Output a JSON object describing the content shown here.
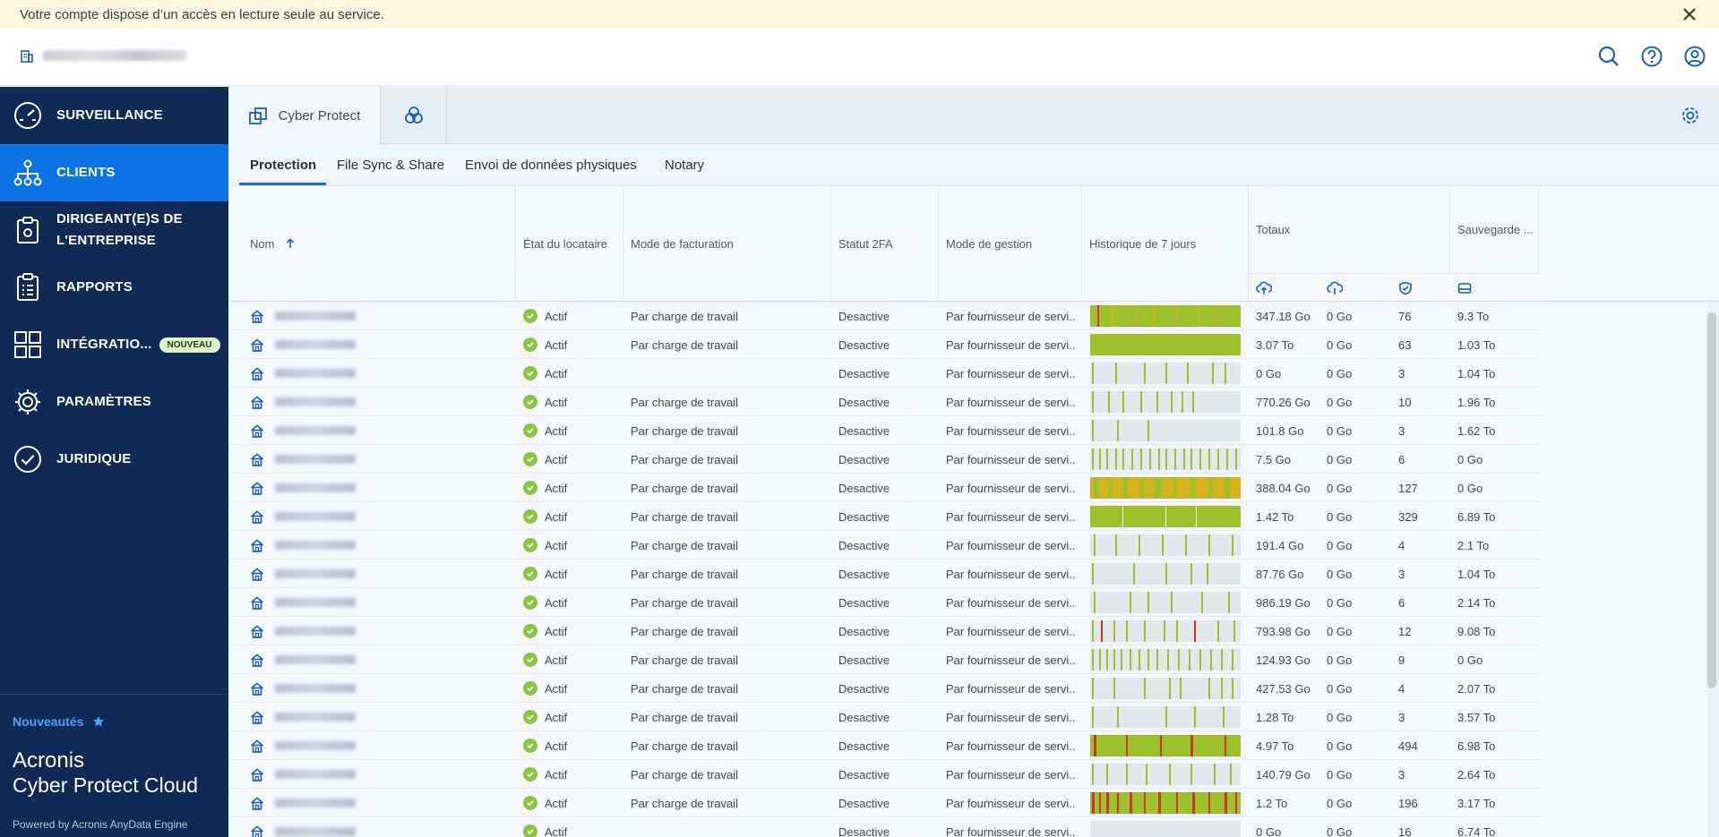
{
  "banner": {
    "message": "Votre compte dispose d’un accès en lecture seule au service."
  },
  "sidebar": {
    "items": [
      {
        "label": "SURVEILLANCE",
        "icon": "gauge-icon"
      },
      {
        "label": "CLIENTS",
        "icon": "org-chart-icon",
        "active": true
      },
      {
        "label": "DIRIGEANT(E)S DE",
        "label2": "L'ENTREPRISE",
        "icon": "clipboard-gear-icon"
      },
      {
        "label": "RAPPORTS",
        "icon": "report-icon"
      },
      {
        "label": "INTÉGRATIO...",
        "icon": "integrations-icon",
        "badge": "NOUVEAU"
      },
      {
        "label": "PARAMÈTRES",
        "icon": "gear-icon"
      },
      {
        "label": "JURIDIQUE",
        "icon": "check-circle-icon"
      }
    ],
    "whats_new": "Nouveautés",
    "brand_line1": "Acronis",
    "brand_line2": "Cyber Protect Cloud",
    "powered": "Powered by Acronis AnyData Engine"
  },
  "app_tabs": [
    {
      "label": "Cyber Protect"
    }
  ],
  "sub_tabs": [
    "Protection",
    "File Sync & Share",
    "Envoi de données physiques",
    "Notary"
  ],
  "table": {
    "headers": {
      "name": "Nom",
      "tenant_state": "État du locataire",
      "billing_mode": "Mode de facturation",
      "status_2fa": "Statut 2FA",
      "mgmt_mode": "Mode de gestion",
      "history": "Historique de 7 jours",
      "totals": "Totaux",
      "backup": "Sauvegarde ..."
    },
    "rows": [
      {
        "state": "Actif",
        "billing": "Par charge de travail",
        "twofa": "Desactive",
        "mgmt": "Par fournisseur de servi...",
        "t1": "347.18 Go",
        "t2": "0 Go",
        "t3": "76",
        "backup": "9.3 To"
      },
      {
        "state": "Actif",
        "billing": "Par charge de travail",
        "twofa": "Desactive",
        "mgmt": "Par fournisseur de servi...",
        "t1": "3.07 To",
        "t2": "0 Go",
        "t3": "63",
        "backup": "1.03 To"
      },
      {
        "state": "Actif",
        "billing": "",
        "twofa": "Desactive",
        "mgmt": "Par fournisseur de servi...",
        "t1": "0 Go",
        "t2": "0 Go",
        "t3": "3",
        "backup": "1.04 To"
      },
      {
        "state": "Actif",
        "billing": "Par charge de travail",
        "twofa": "Desactive",
        "mgmt": "Par fournisseur de servi...",
        "t1": "770.26 Go",
        "t2": "0 Go",
        "t3": "10",
        "backup": "1.96 To"
      },
      {
        "state": "Actif",
        "billing": "Par charge de travail",
        "twofa": "Desactive",
        "mgmt": "Par fournisseur de servi...",
        "t1": "101.8 Go",
        "t2": "0 Go",
        "t3": "3",
        "backup": "1.62 To"
      },
      {
        "state": "Actif",
        "billing": "Par charge de travail",
        "twofa": "Desactive",
        "mgmt": "Par fournisseur de servi...",
        "t1": "7.5 Go",
        "t2": "0 Go",
        "t3": "6",
        "backup": "0 Go"
      },
      {
        "state": "Actif",
        "billing": "Par charge de travail",
        "twofa": "Desactive",
        "mgmt": "Par fournisseur de servi...",
        "t1": "388.04 Go",
        "t2": "0 Go",
        "t3": "127",
        "backup": "0 Go"
      },
      {
        "state": "Actif",
        "billing": "Par charge de travail",
        "twofa": "Desactive",
        "mgmt": "Par fournisseur de servi...",
        "t1": "1.42 To",
        "t2": "0 Go",
        "t3": "329",
        "backup": "6.89 To"
      },
      {
        "state": "Actif",
        "billing": "Par charge de travail",
        "twofa": "Desactive",
        "mgmt": "Par fournisseur de servi...",
        "t1": "191.4 Go",
        "t2": "0 Go",
        "t3": "4",
        "backup": "2.1 To"
      },
      {
        "state": "Actif",
        "billing": "Par charge de travail",
        "twofa": "Desactive",
        "mgmt": "Par fournisseur de servi...",
        "t1": "87.76 Go",
        "t2": "0 Go",
        "t3": "3",
        "backup": "1.04 To"
      },
      {
        "state": "Actif",
        "billing": "Par charge de travail",
        "twofa": "Desactive",
        "mgmt": "Par fournisseur de servi...",
        "t1": "986.19 Go",
        "t2": "0 Go",
        "t3": "6",
        "backup": "2.14 To"
      },
      {
        "state": "Actif",
        "billing": "Par charge de travail",
        "twofa": "Desactive",
        "mgmt": "Par fournisseur de servi...",
        "t1": "793.98 Go",
        "t2": "0 Go",
        "t3": "12",
        "backup": "9.08 To"
      },
      {
        "state": "Actif",
        "billing": "Par charge de travail",
        "twofa": "Desactive",
        "mgmt": "Par fournisseur de servi...",
        "t1": "124.93 Go",
        "t2": "0 Go",
        "t3": "9",
        "backup": "0 Go"
      },
      {
        "state": "Actif",
        "billing": "Par charge de travail",
        "twofa": "Desactive",
        "mgmt": "Par fournisseur de servi...",
        "t1": "427.53 Go",
        "t2": "0 Go",
        "t3": "4",
        "backup": "2.07 To"
      },
      {
        "state": "Actif",
        "billing": "Par charge de travail",
        "twofa": "Desactive",
        "mgmt": "Par fournisseur de servi...",
        "t1": "1.28 To",
        "t2": "0 Go",
        "t3": "3",
        "backup": "3.57 To"
      },
      {
        "state": "Actif",
        "billing": "Par charge de travail",
        "twofa": "Desactive",
        "mgmt": "Par fournisseur de servi...",
        "t1": "4.97 To",
        "t2": "0 Go",
        "t3": "494",
        "backup": "6.98 To"
      },
      {
        "state": "Actif",
        "billing": "Par charge de travail",
        "twofa": "Desactive",
        "mgmt": "Par fournisseur de servi...",
        "t1": "140.79 Go",
        "t2": "0 Go",
        "t3": "3",
        "backup": "2.64 To"
      },
      {
        "state": "Actif",
        "billing": "Par charge de travail",
        "twofa": "Desactive",
        "mgmt": "Par fournisseur de servi...",
        "t1": "1.2 To",
        "t2": "0 Go",
        "t3": "196",
        "backup": "3.17 To"
      },
      {
        "state": "Actif",
        "billing": "",
        "twofa": "Desactive",
        "mgmt": "Par fournisseur de servi...",
        "t1": "0 Go",
        "t2": "0 Go",
        "t3": "16",
        "backup": "6.74 To"
      }
    ]
  },
  "colors": {
    "sidebar": "#0f2a55",
    "active_nav": "#0b73e6",
    "ok_green": "#8cc63f",
    "hist_green": "#9bc22b",
    "hist_yellow": "#d6b21c",
    "hist_red": "#d0342c"
  }
}
